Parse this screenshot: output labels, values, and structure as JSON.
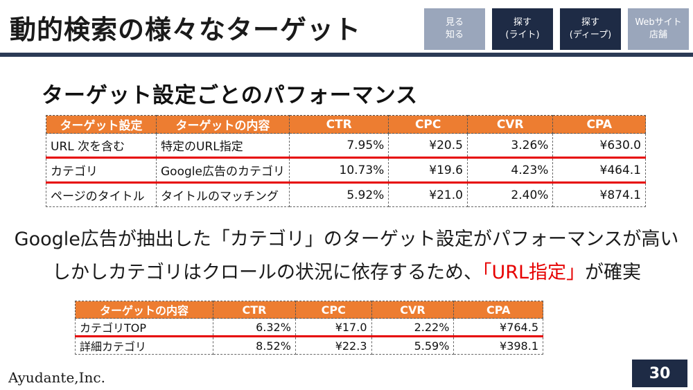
{
  "slide": {
    "title": "動的検索の様々なターゲット",
    "subtitle": "ターゲット設定ごとのパフォーマンス",
    "page_number": "30",
    "logo_text": "Ayudante,Inc."
  },
  "nav": {
    "items": [
      {
        "label": "見る\n知る",
        "active": false
      },
      {
        "label": "探す\n(ライト)",
        "active": true
      },
      {
        "label": "探す\n(ディープ)",
        "active": true
      },
      {
        "label": "Webサイト\n店舗",
        "active": false
      }
    ]
  },
  "table1": {
    "headers": [
      "ターゲット設定",
      "ターゲットの内容",
      "CTR",
      "CPC",
      "CVR",
      "CPA"
    ],
    "rows": [
      [
        "URL 次を含む",
        "特定のURL指定",
        "7.95%",
        "¥20.5",
        "3.26%",
        "¥630.0"
      ],
      [
        "カテゴリ",
        "Google広告のカテゴリ",
        "10.73%",
        "¥19.6",
        "4.23%",
        "¥464.1"
      ],
      [
        "ページのタイトル",
        "タイトルのマッチング",
        "5.92%",
        "¥21.0",
        "2.40%",
        "¥874.1"
      ]
    ]
  },
  "message": {
    "line1": "Google広告が抽出した「カテゴリ」のターゲット設定がパフォーマンスが高い",
    "line2_prefix": "しかしカテゴリはクロールの状況に依存するため、",
    "line2_highlight": "「URL指定」",
    "line2_suffix": "が確実"
  },
  "table2": {
    "headers": [
      "ターゲットの内容",
      "CTR",
      "CPC",
      "CVR",
      "CPA"
    ],
    "rows": [
      [
        "カテゴリTOP",
        "6.32%",
        "¥17.0",
        "2.22%",
        "¥764.5"
      ],
      [
        "詳細カテゴリ",
        "8.52%",
        "¥22.3",
        "5.59%",
        "¥398.1"
      ]
    ]
  },
  "colors": {
    "header_orange": "#ed7d31",
    "nav_dark": "#1e2b45",
    "nav_light": "#9aa6bb",
    "highlight_red": "#e60000"
  }
}
